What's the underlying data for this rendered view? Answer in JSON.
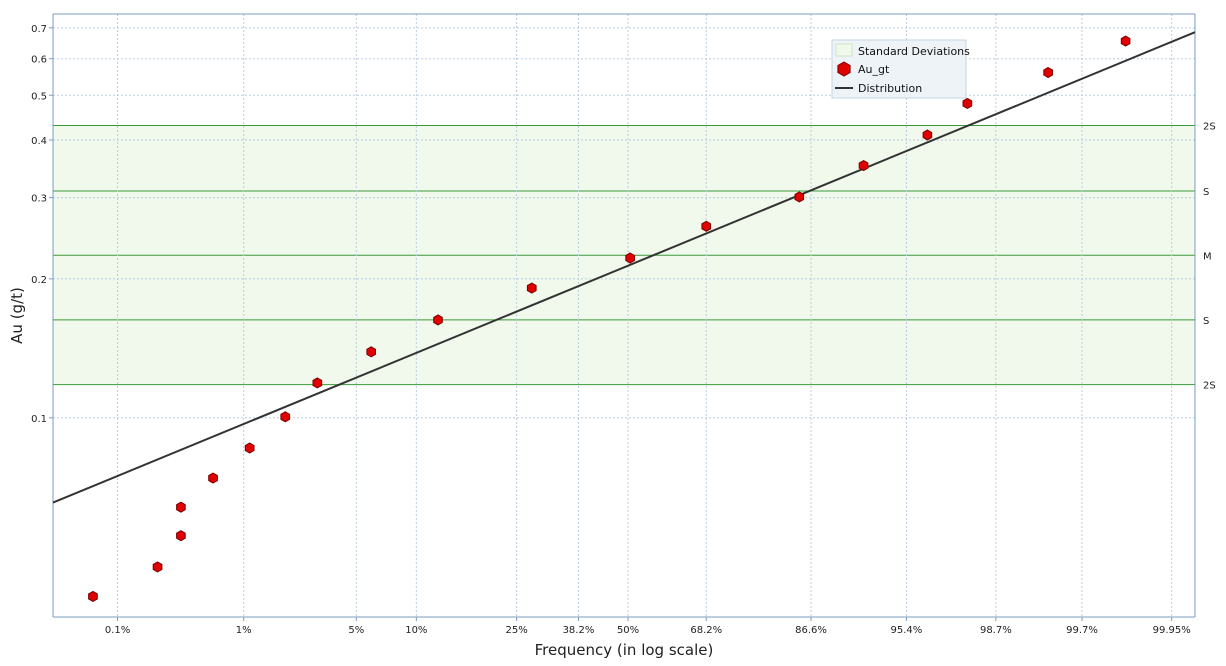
{
  "chart_data": {
    "type": "scatter",
    "xlabel": "Frequency (in log scale)",
    "ylabel": "Au (g/t)",
    "x_scale": "probability",
    "y_scale": "log",
    "xlim_percent": [
      0.025,
      99.97
    ],
    "ylim": [
      0.037,
      0.75
    ],
    "x_ticks": [
      {
        "label": "0.1%",
        "p": 0.1
      },
      {
        "label": "1%",
        "p": 1
      },
      {
        "label": "5%",
        "p": 5
      },
      {
        "label": "10%",
        "p": 10
      },
      {
        "label": "25%",
        "p": 25
      },
      {
        "label": "38.2%",
        "p": 38.2
      },
      {
        "label": "50%",
        "p": 50
      },
      {
        "label": "68.2%",
        "p": 68.2
      },
      {
        "label": "86.6%",
        "p": 86.6
      },
      {
        "label": "95.4%",
        "p": 95.4
      },
      {
        "label": "98.7%",
        "p": 98.7
      },
      {
        "label": "99.7%",
        "p": 99.7
      },
      {
        "label": "99.95%",
        "p": 99.95
      }
    ],
    "y_ticks": [
      {
        "label": "0.1",
        "v": 0.1
      },
      {
        "label": "0.2",
        "v": 0.2
      },
      {
        "label": "0.3",
        "v": 0.3
      },
      {
        "label": "0.4",
        "v": 0.4
      },
      {
        "label": "0.5",
        "v": 0.5
      },
      {
        "label": "0.6",
        "v": 0.6
      },
      {
        "label": "0.7",
        "v": 0.7
      }
    ],
    "std_bands": {
      "mean": 0.225,
      "lines": [
        {
          "label": "2S",
          "value": 0.43
        },
        {
          "label": "S",
          "value": 0.31
        },
        {
          "label": "M",
          "value": 0.225
        },
        {
          "label": "S",
          "value": 0.163
        },
        {
          "label": "2S",
          "value": 0.118
        }
      ],
      "fill_color": "#f1f8ec",
      "line_color": "#3a9a3a"
    },
    "series": [
      {
        "name": "Au_gt",
        "marker": "hexagon",
        "color": "#e00000",
        "points": [
          {
            "p": 0.06,
            "v": 0.041
          },
          {
            "p": 0.22,
            "v": 0.0475
          },
          {
            "p": 0.34,
            "v": 0.0555
          },
          {
            "p": 0.34,
            "v": 0.064
          },
          {
            "p": 0.6,
            "v": 0.074
          },
          {
            "p": 1.1,
            "v": 0.086
          },
          {
            "p": 1.9,
            "v": 0.1005
          },
          {
            "p": 3.0,
            "v": 0.119
          },
          {
            "p": 6.0,
            "v": 0.139
          },
          {
            "p": 12.5,
            "v": 0.163
          },
          {
            "p": 28.0,
            "v": 0.191
          },
          {
            "p": 50.5,
            "v": 0.222
          },
          {
            "p": 68.2,
            "v": 0.26
          },
          {
            "p": 85.0,
            "v": 0.301
          },
          {
            "p": 92.3,
            "v": 0.352
          },
          {
            "p": 96.5,
            "v": 0.41
          },
          {
            "p": 98.0,
            "v": 0.48
          },
          {
            "p": 99.45,
            "v": 0.56
          },
          {
            "p": 99.87,
            "v": 0.655
          }
        ]
      },
      {
        "name": "Distribution",
        "type": "line",
        "color": "#333333",
        "points": [
          {
            "p": 0.025,
            "v": 0.0655
          },
          {
            "p": 99.97,
            "v": 0.685
          }
        ]
      }
    ],
    "legend": {
      "position": "top-right",
      "entries": [
        "Standard Deviations",
        "Au_gt",
        "Distribution"
      ]
    },
    "grid": true
  },
  "colors": {
    "grid": "#b8cde0",
    "axis": "#7a9cc0",
    "marker_fill": "#e00000",
    "marker_stroke": "#7a0000",
    "line": "#333333"
  }
}
